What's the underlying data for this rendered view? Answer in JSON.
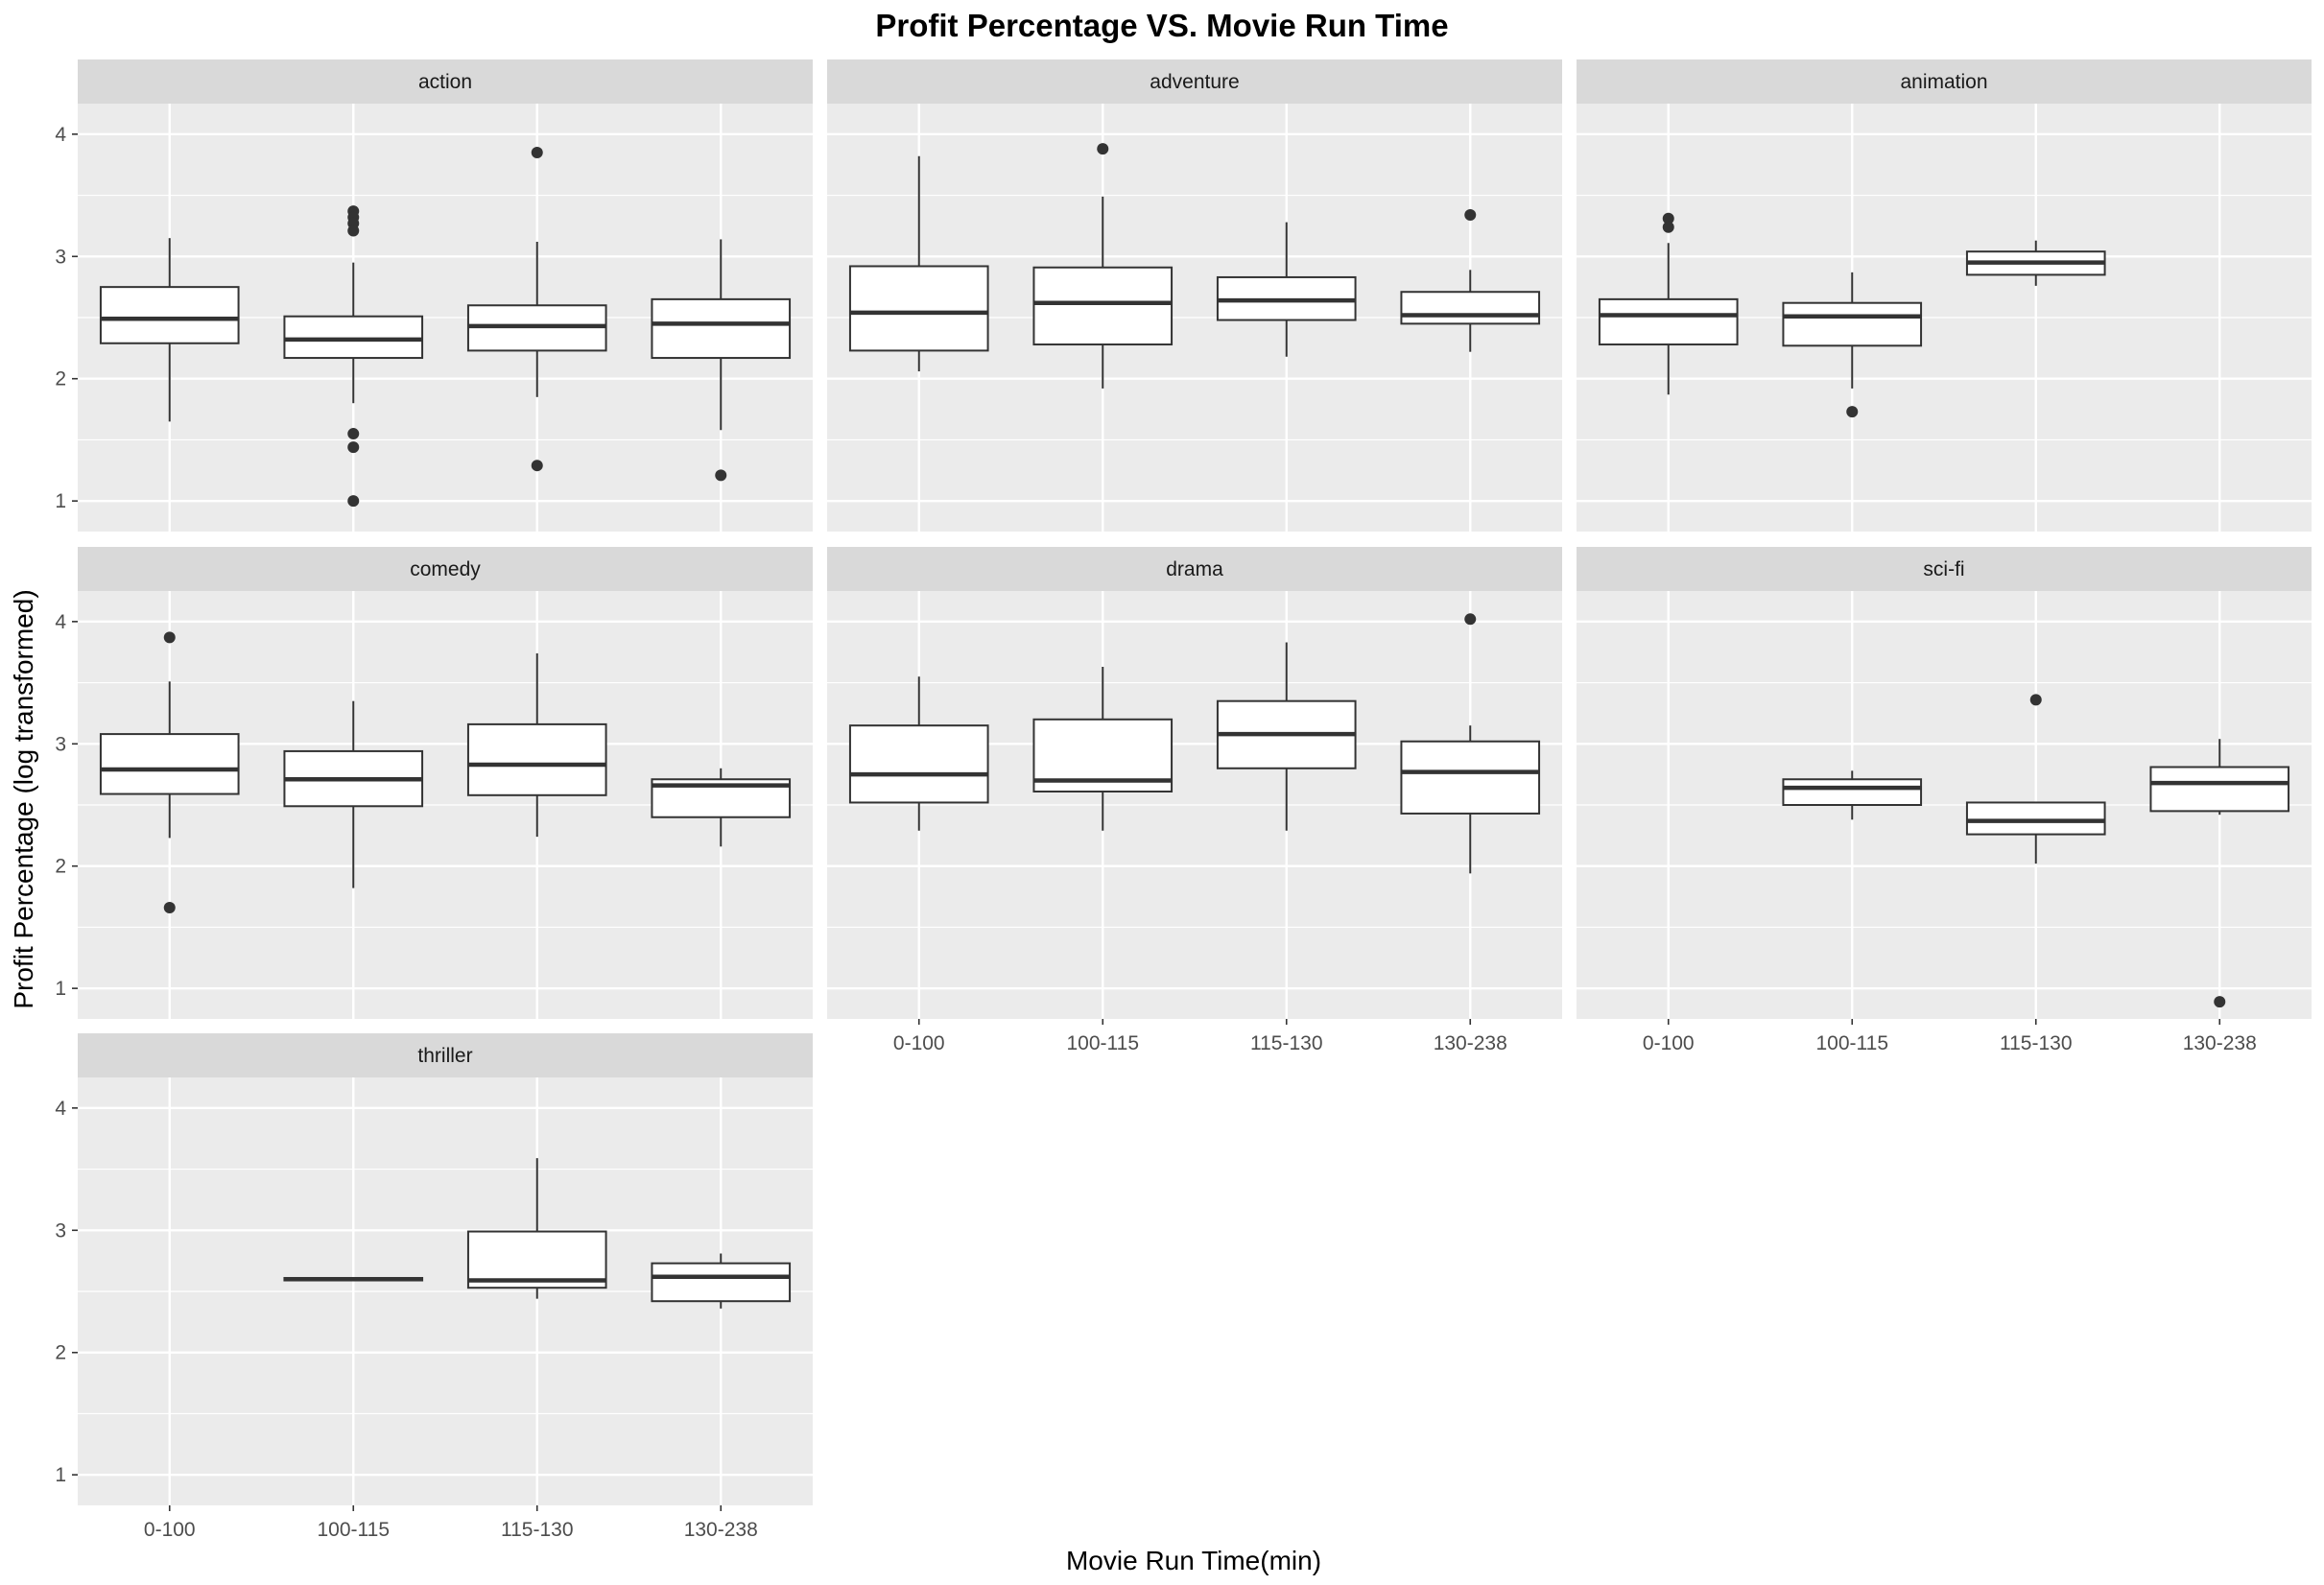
{
  "chart_data": {
    "type": "boxplot",
    "title": "Profit Percentage VS. Movie Run Time",
    "xlabel": "Movie Run Time(min)",
    "ylabel": "Profit Percentage (log transformed)",
    "ylim": [
      0.75,
      4.25
    ],
    "yticks": [
      1,
      2,
      3,
      4
    ],
    "categories": [
      "0-100",
      "100-115",
      "115-130",
      "130-238"
    ],
    "facet_layout": {
      "columns": 3,
      "rows": 3
    },
    "colors": {
      "panel": "#ebebeb",
      "strip": "#d9d9d9",
      "grid": "#ffffff",
      "box_fill": "#ffffff",
      "box_line": "#333333"
    },
    "facets": [
      {
        "name": "action",
        "boxes": [
          {
            "category": "0-100",
            "whisker_low": 1.65,
            "q1": 2.29,
            "median": 2.49,
            "q3": 2.75,
            "whisker_high": 3.15,
            "outliers": []
          },
          {
            "category": "100-115",
            "whisker_low": 1.8,
            "q1": 2.17,
            "median": 2.32,
            "q3": 2.51,
            "whisker_high": 2.95,
            "outliers": [
              3.37,
              3.32,
              3.27,
              3.21,
              1.55,
              1.44,
              1.0
            ]
          },
          {
            "category": "115-130",
            "whisker_low": 1.85,
            "q1": 2.23,
            "median": 2.43,
            "q3": 2.6,
            "whisker_high": 3.12,
            "outliers": [
              3.85,
              1.29
            ]
          },
          {
            "category": "130-238",
            "whisker_low": 1.58,
            "q1": 2.17,
            "median": 2.45,
            "q3": 2.65,
            "whisker_high": 3.14,
            "outliers": [
              1.21
            ]
          }
        ]
      },
      {
        "name": "adventure",
        "boxes": [
          {
            "category": "0-100",
            "whisker_low": 2.06,
            "q1": 2.23,
            "median": 2.54,
            "q3": 2.92,
            "whisker_high": 3.82,
            "outliers": []
          },
          {
            "category": "100-115",
            "whisker_low": 1.92,
            "q1": 2.28,
            "median": 2.62,
            "q3": 2.91,
            "whisker_high": 3.49,
            "outliers": [
              3.88
            ]
          },
          {
            "category": "115-130",
            "whisker_low": 2.18,
            "q1": 2.48,
            "median": 2.64,
            "q3": 2.83,
            "whisker_high": 3.28,
            "outliers": []
          },
          {
            "category": "130-238",
            "whisker_low": 2.22,
            "q1": 2.45,
            "median": 2.52,
            "q3": 2.71,
            "whisker_high": 2.89,
            "outliers": [
              3.34
            ]
          }
        ]
      },
      {
        "name": "animation",
        "boxes": [
          {
            "category": "0-100",
            "whisker_low": 1.87,
            "q1": 2.28,
            "median": 2.52,
            "q3": 2.65,
            "whisker_high": 3.11,
            "outliers": [
              3.31,
              3.24
            ]
          },
          {
            "category": "100-115",
            "whisker_low": 1.92,
            "q1": 2.27,
            "median": 2.51,
            "q3": 2.62,
            "whisker_high": 2.87,
            "outliers": [
              1.73
            ]
          },
          {
            "category": "115-130",
            "whisker_low": 2.76,
            "q1": 2.85,
            "median": 2.95,
            "q3": 3.04,
            "whisker_high": 3.13,
            "outliers": []
          }
        ]
      },
      {
        "name": "comedy",
        "boxes": [
          {
            "category": "0-100",
            "whisker_low": 2.23,
            "q1": 2.59,
            "median": 2.79,
            "q3": 3.08,
            "whisker_high": 3.51,
            "outliers": [
              3.87,
              1.66
            ]
          },
          {
            "category": "100-115",
            "whisker_low": 1.82,
            "q1": 2.49,
            "median": 2.71,
            "q3": 2.94,
            "whisker_high": 3.35,
            "outliers": []
          },
          {
            "category": "115-130",
            "whisker_low": 2.24,
            "q1": 2.58,
            "median": 2.83,
            "q3": 3.16,
            "whisker_high": 3.74,
            "outliers": []
          },
          {
            "category": "130-238",
            "whisker_low": 2.16,
            "q1": 2.4,
            "median": 2.66,
            "q3": 2.71,
            "whisker_high": 2.8,
            "outliers": []
          }
        ]
      },
      {
        "name": "drama",
        "boxes": [
          {
            "category": "0-100",
            "whisker_low": 2.29,
            "q1": 2.52,
            "median": 2.75,
            "q3": 3.15,
            "whisker_high": 3.55,
            "outliers": []
          },
          {
            "category": "100-115",
            "whisker_low": 2.29,
            "q1": 2.61,
            "median": 2.7,
            "q3": 3.2,
            "whisker_high": 3.63,
            "outliers": []
          },
          {
            "category": "115-130",
            "whisker_low": 2.29,
            "q1": 2.8,
            "median": 3.08,
            "q3": 3.35,
            "whisker_high": 3.83,
            "outliers": []
          },
          {
            "category": "130-238",
            "whisker_low": 1.94,
            "q1": 2.43,
            "median": 2.77,
            "q3": 3.02,
            "whisker_high": 3.15,
            "outliers": [
              4.02
            ]
          }
        ]
      },
      {
        "name": "sci-fi",
        "boxes": [
          {
            "category": "100-115",
            "whisker_low": 2.38,
            "q1": 2.5,
            "median": 2.64,
            "q3": 2.71,
            "whisker_high": 2.78,
            "outliers": []
          },
          {
            "category": "115-130",
            "whisker_low": 2.02,
            "q1": 2.26,
            "median": 2.37,
            "q3": 2.52,
            "whisker_high": 2.52,
            "outliers": [
              3.36
            ]
          },
          {
            "category": "130-238",
            "whisker_low": 2.42,
            "q1": 2.45,
            "median": 2.68,
            "q3": 2.81,
            "whisker_high": 3.04,
            "outliers": [
              0.89
            ]
          }
        ]
      },
      {
        "name": "thriller",
        "boxes": [
          {
            "category": "100-115",
            "whisker_low": 2.59,
            "q1": 2.59,
            "median": 2.6,
            "q3": 2.61,
            "whisker_high": 2.61,
            "outliers": []
          },
          {
            "category": "115-130",
            "whisker_low": 2.44,
            "q1": 2.53,
            "median": 2.59,
            "q3": 2.99,
            "whisker_high": 3.59,
            "outliers": []
          },
          {
            "category": "130-238",
            "whisker_low": 2.36,
            "q1": 2.42,
            "median": 2.62,
            "q3": 2.73,
            "whisker_high": 2.81,
            "outliers": []
          }
        ]
      }
    ]
  }
}
